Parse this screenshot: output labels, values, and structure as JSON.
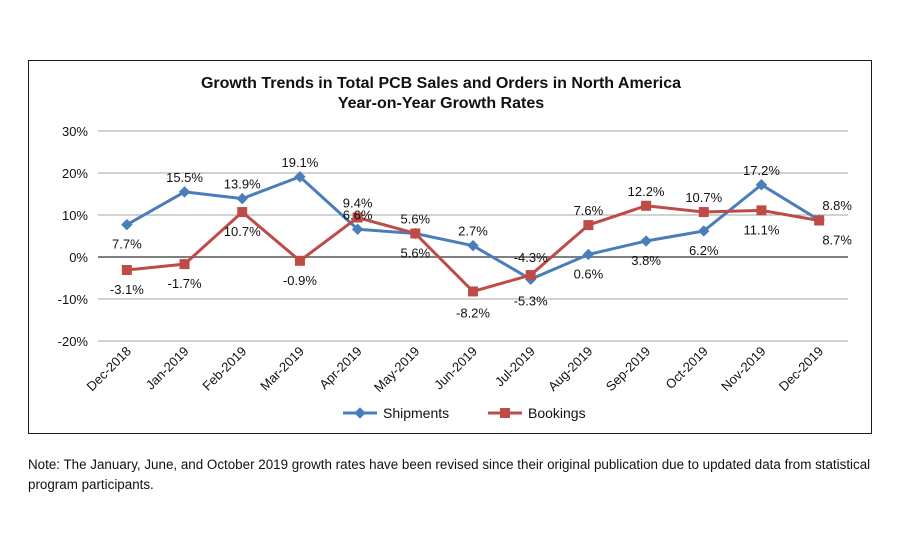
{
  "note": "Note: The January, June, and October 2019 growth rates have been revised since their original publication due to updated data from statistical program participants.",
  "chart_data": {
    "type": "line",
    "title": "Growth Trends in Total PCB Sales and Orders in North America",
    "subtitle": "Year-on-Year Growth Rates",
    "categories": [
      "Dec-2018",
      "Jan-2019",
      "Feb-2019",
      "Mar-2019",
      "Apr-2019",
      "May-2019",
      "Jun-2019",
      "Jul-2019",
      "Aug-2019",
      "Sep-2019",
      "Oct-2019",
      "Nov-2019",
      "Dec-2019"
    ],
    "y_ticks": [
      "30%",
      "20%",
      "10%",
      "0%",
      "-10%",
      "-20%"
    ],
    "ylim": [
      -20,
      30
    ],
    "grid": true,
    "legend": "bottom",
    "series": [
      {
        "name": "Shipments",
        "color": "#4a7ebb",
        "marker": "diamond",
        "values": [
          7.7,
          15.5,
          13.9,
          19.1,
          6.6,
          5.6,
          2.7,
          -5.3,
          0.6,
          3.8,
          6.2,
          17.2,
          8.8
        ],
        "labels": [
          "7.7%",
          "15.5%",
          "13.9%",
          "19.1%",
          "6.6%",
          "5.6%",
          "2.7%",
          "-5.3%",
          "0.6%",
          "3.8%",
          "6.2%",
          "17.2%",
          "8.8%"
        ]
      },
      {
        "name": "Bookings",
        "color": "#be4b48",
        "marker": "square",
        "values": [
          -3.1,
          -1.7,
          10.7,
          -0.9,
          9.4,
          5.6,
          -8.2,
          -4.3,
          7.6,
          12.2,
          10.7,
          11.1,
          8.7
        ],
        "labels": [
          "-3.1%",
          "-1.7%",
          "10.7%",
          "-0.9%",
          "9.4%",
          "5.6%",
          "-8.2%",
          "-4.3%",
          "7.6%",
          "12.2%",
          "10.7%",
          "11.1%",
          "8.7%"
        ]
      }
    ]
  }
}
